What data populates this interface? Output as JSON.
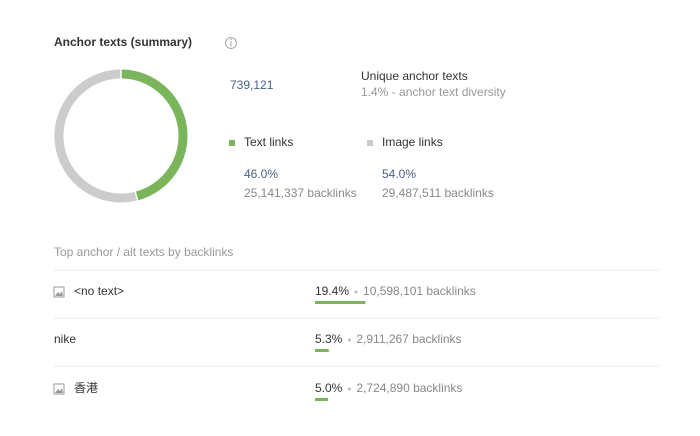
{
  "header": {
    "title": "Anchor texts (summary)"
  },
  "summary": {
    "total": "739,121",
    "total_label": "Unique anchor texts",
    "diversity": "1.4% - anchor text diversity"
  },
  "chart_data": {
    "type": "donut",
    "categories": [
      "Text links",
      "Image links"
    ],
    "values": [
      46.0,
      54.0
    ],
    "value_labels": [
      "46.0%",
      "54.0%"
    ],
    "colors": [
      "#7ab55c",
      "#cccccc"
    ],
    "backlinks": [
      "25,141,337 backlinks",
      "29,487,511 backlinks"
    ]
  },
  "top_anchors": {
    "title": "Top anchor / alt texts by backlinks",
    "bar_color": "#7ab55c",
    "rows": [
      {
        "image": true,
        "text": "<no text>",
        "share": 19.4,
        "share_label": "19.4%",
        "backlinks": "10,598,101 backlinks"
      },
      {
        "image": false,
        "text": "nike",
        "share": 5.3,
        "share_label": "5.3%",
        "backlinks": "2,911,267 backlinks"
      },
      {
        "image": true,
        "text": "香港",
        "share": 5.0,
        "share_label": "5.0%",
        "backlinks": "2,724,890 backlinks"
      }
    ]
  }
}
